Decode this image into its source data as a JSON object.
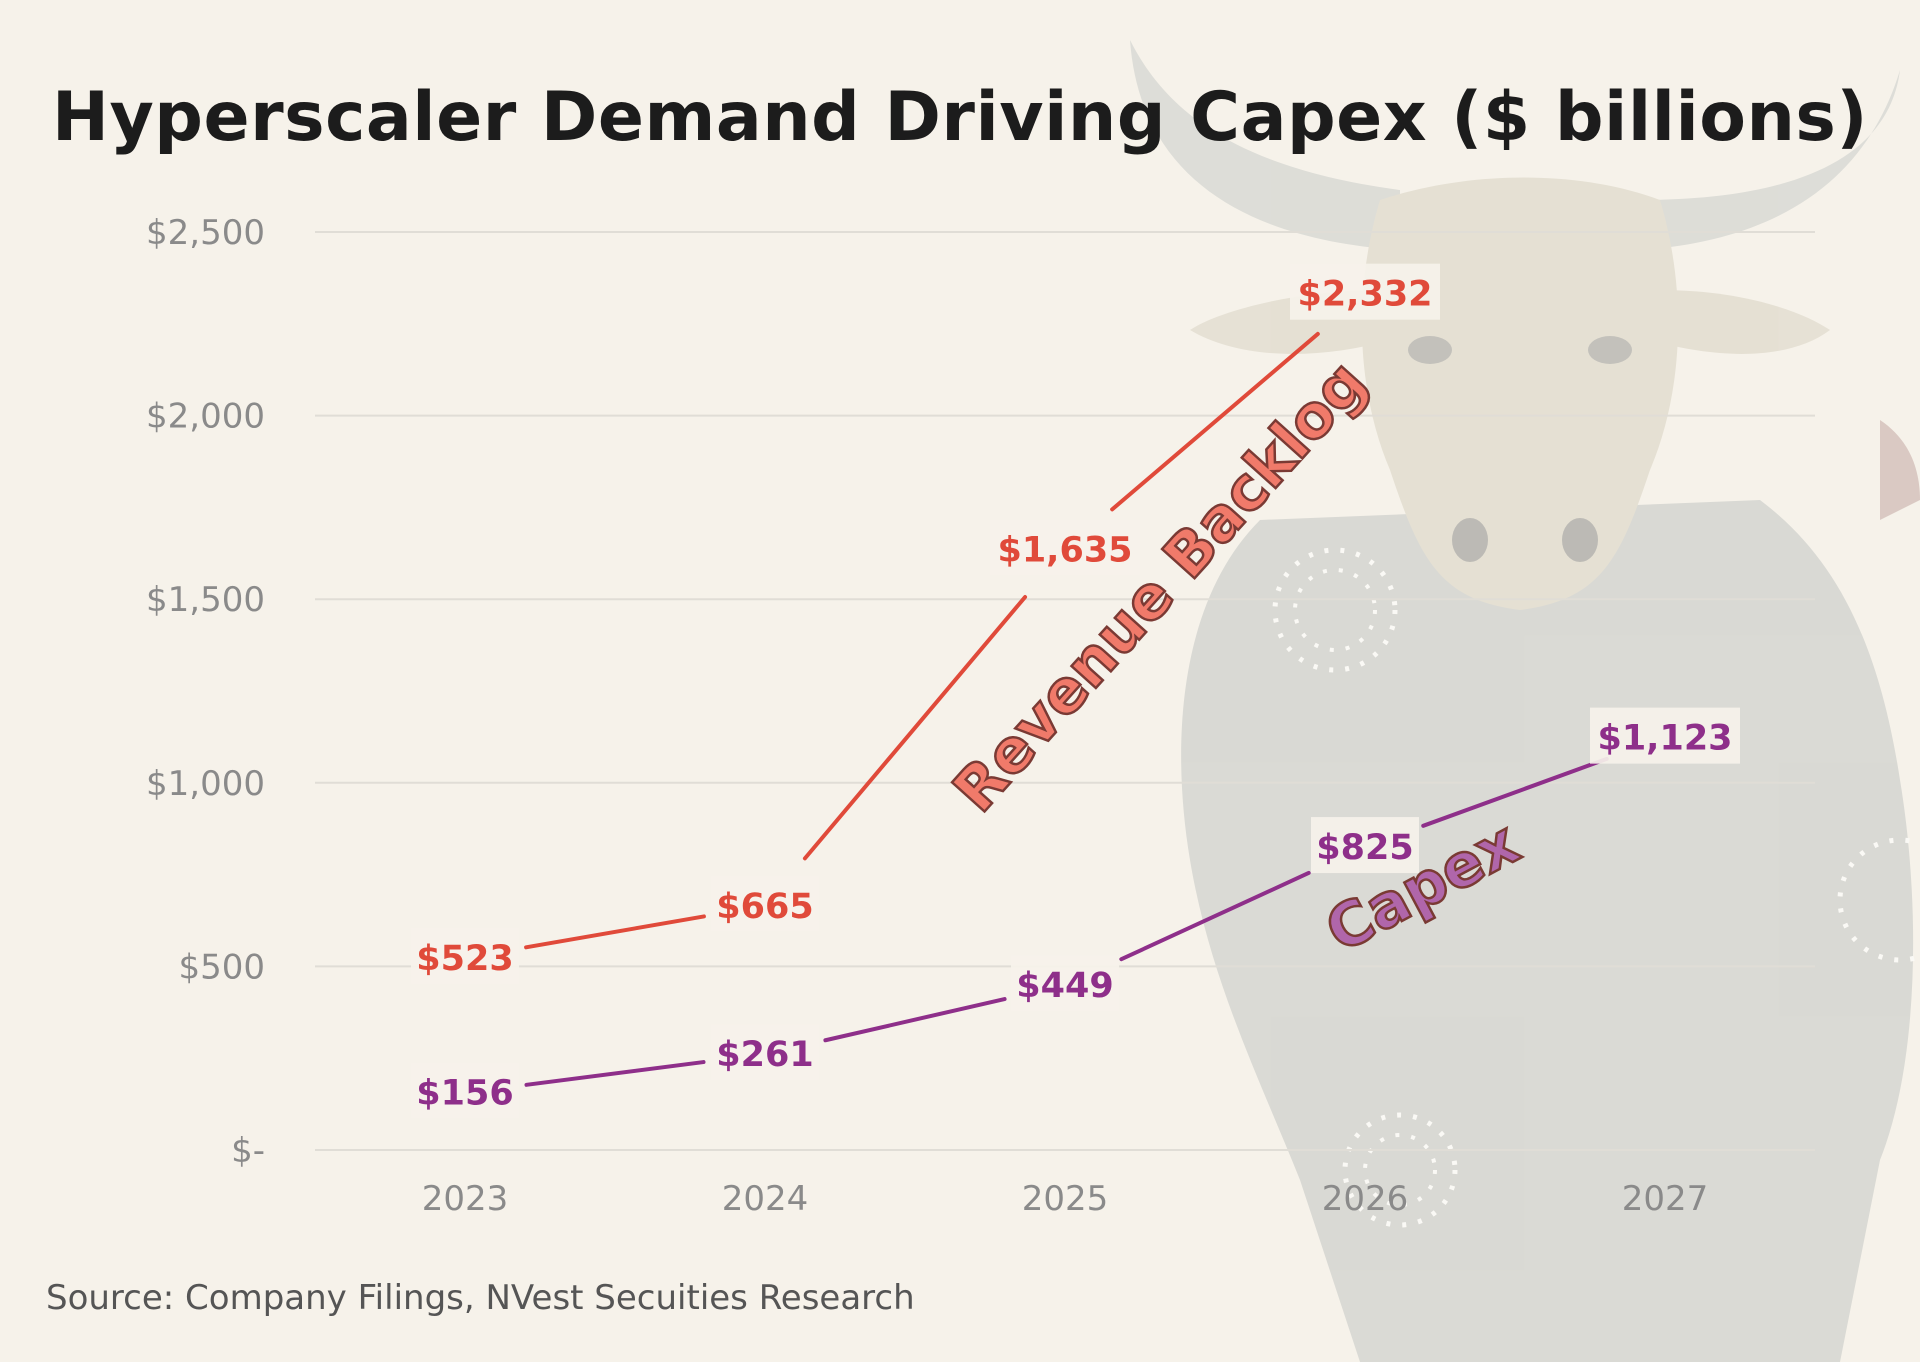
{
  "chart_data": {
    "type": "line",
    "title": "Hyperscaler Demand Driving Capex ($ billions)",
    "categories": [
      "2023",
      "2024",
      "2025",
      "2026",
      "2027"
    ],
    "y_ticks": [
      {
        "value": 0,
        "label": "$-"
      },
      {
        "value": 500,
        "label": "$500"
      },
      {
        "value": 1000,
        "label": "$1,000"
      },
      {
        "value": 1500,
        "label": "$1,500"
      },
      {
        "value": 2000,
        "label": "$2,000"
      },
      {
        "value": 2500,
        "label": "$2,500"
      }
    ],
    "ylim": [
      0,
      2500
    ],
    "grid": "horizontal",
    "series": [
      {
        "name": "Revenue Backlog",
        "color": "#e04a3a",
        "values": [
          523,
          665,
          1635,
          2332,
          null
        ],
        "labels": [
          "$523",
          "$665",
          "$1,635",
          "$2,332",
          null
        ]
      },
      {
        "name": "Capex",
        "color": "#8e2f8a",
        "values": [
          156,
          261,
          449,
          825,
          1123
        ],
        "labels": [
          "$156",
          "$261",
          "$449",
          "$825",
          "$1,123"
        ]
      }
    ],
    "source": "Source: Company Filings, NVest Secuities Research"
  },
  "colors": {
    "background": "#f6f2ea",
    "grid": "#e0ddd6",
    "revenue_backlog": "#e04a3a",
    "capex": "#8e2f8a",
    "revenue_backlog_callout": "#f07a6a",
    "capex_callout": "#b066aa"
  },
  "background_art": "bull-illustration"
}
